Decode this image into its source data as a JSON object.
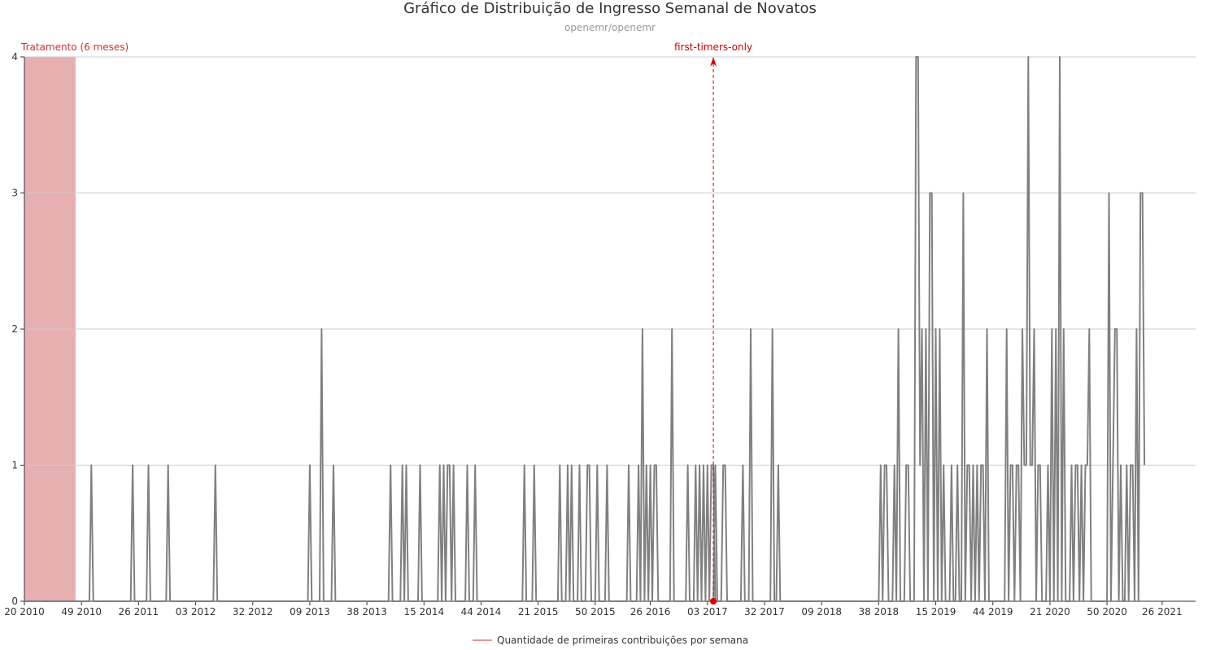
{
  "chart_data": {
    "type": "line",
    "title": "Gráfico de Distribuição de Ingresso Semanal de Novatos",
    "subtitle": "openemr/openemr",
    "ylim": [
      0,
      4
    ],
    "y_ticks": [
      "0",
      "1",
      "2",
      "3",
      "4"
    ],
    "x_tick_labels": [
      "20 2010",
      "49 2010",
      "26 2011",
      "03 2012",
      "32 2012",
      "09 2013",
      "38 2013",
      "15 2014",
      "44 2014",
      "21 2015",
      "50 2015",
      "26 2016",
      "03 2017",
      "32 2017",
      "09 2018",
      "38 2018",
      "15 2019",
      "44 2019",
      "21 2020",
      "50 2020",
      "26 2021"
    ],
    "x_range": [
      "20 2010",
      "43 2021"
    ],
    "grid": "horizontal",
    "legend_position": "bottom-center",
    "series": [
      {
        "name": "Quantidade de primeiras contribuições por semana",
        "color": "#808080",
        "points": [
          [
            "20 2010",
            0
          ],
          [
            "01 2011",
            0
          ],
          [
            "02 2011",
            1
          ],
          [
            "03 2011",
            0
          ],
          [
            "22 2011",
            0
          ],
          [
            "23 2011",
            1
          ],
          [
            "24 2011",
            0
          ],
          [
            "30 2011",
            0
          ],
          [
            "31 2011",
            1
          ],
          [
            "32 2011",
            0
          ],
          [
            "40 2011",
            0
          ],
          [
            "41 2011",
            1
          ],
          [
            "42 2011",
            0
          ],
          [
            "12 2012",
            0
          ],
          [
            "13 2012",
            1
          ],
          [
            "14 2012",
            0
          ],
          [
            "08 2013",
            0
          ],
          [
            "09 2013",
            1
          ],
          [
            "10 2013",
            0
          ],
          [
            "14 2013",
            0
          ],
          [
            "15 2013",
            2
          ],
          [
            "16 2013",
            0
          ],
          [
            "20 2013",
            0
          ],
          [
            "21 2013",
            1
          ],
          [
            "22 2013",
            0
          ],
          [
            "49 2013",
            0
          ],
          [
            "50 2013",
            1
          ],
          [
            "51 2013",
            0
          ],
          [
            "03 2014",
            0
          ],
          [
            "04 2014",
            1
          ],
          [
            "05 2014",
            0
          ],
          [
            "06 2014",
            1
          ],
          [
            "07 2014",
            0
          ],
          [
            "12 2014",
            0
          ],
          [
            "13 2014",
            1
          ],
          [
            "14 2014",
            0
          ],
          [
            "22 2014",
            0
          ],
          [
            "23 2014",
            1
          ],
          [
            "24 2014",
            0
          ],
          [
            "25 2014",
            1
          ],
          [
            "26 2014",
            0
          ],
          [
            "27 2014",
            1
          ],
          [
            "28 2014",
            1
          ],
          [
            "29 2014",
            0
          ],
          [
            "30 2014",
            1
          ],
          [
            "31 2014",
            0
          ],
          [
            "36 2014",
            0
          ],
          [
            "37 2014",
            1
          ],
          [
            "38 2014",
            0
          ],
          [
            "40 2014",
            0
          ],
          [
            "41 2014",
            1
          ],
          [
            "42 2014",
            0
          ],
          [
            "13 2015",
            0
          ],
          [
            "14 2015",
            1
          ],
          [
            "15 2015",
            0
          ],
          [
            "18 2015",
            0
          ],
          [
            "19 2015",
            1
          ],
          [
            "20 2015",
            0
          ],
          [
            "31 2015",
            0
          ],
          [
            "32 2015",
            1
          ],
          [
            "33 2015",
            0
          ],
          [
            "35 2015",
            0
          ],
          [
            "36 2015",
            1
          ],
          [
            "37 2015",
            0
          ],
          [
            "38 2015",
            1
          ],
          [
            "39 2015",
            0
          ],
          [
            "41 2015",
            0
          ],
          [
            "42 2015",
            1
          ],
          [
            "43 2015",
            0
          ],
          [
            "45 2015",
            0
          ],
          [
            "46 2015",
            1
          ],
          [
            "47 2015",
            1
          ],
          [
            "48 2015",
            0
          ],
          [
            "50 2015",
            0
          ],
          [
            "51 2015",
            1
          ],
          [
            "52 2015",
            0
          ],
          [
            "03 2016",
            0
          ],
          [
            "04 2016",
            1
          ],
          [
            "05 2016",
            0
          ],
          [
            "14 2016",
            0
          ],
          [
            "15 2016",
            1
          ],
          [
            "16 2016",
            0
          ],
          [
            "19 2016",
            0
          ],
          [
            "20 2016",
            1
          ],
          [
            "21 2016",
            0
          ],
          [
            "22 2016",
            2
          ],
          [
            "23 2016",
            0
          ],
          [
            "24 2016",
            1
          ],
          [
            "25 2016",
            0
          ],
          [
            "26 2016",
            1
          ],
          [
            "27 2016",
            0
          ],
          [
            "28 2016",
            1
          ],
          [
            "29 2016",
            1
          ],
          [
            "30 2016",
            0
          ],
          [
            "36 2016",
            0
          ],
          [
            "37 2016",
            2
          ],
          [
            "38 2016",
            0
          ],
          [
            "44 2016",
            0
          ],
          [
            "45 2016",
            1
          ],
          [
            "46 2016",
            0
          ],
          [
            "48 2016",
            0
          ],
          [
            "49 2016",
            1
          ],
          [
            "50 2016",
            0
          ],
          [
            "51 2016",
            1
          ],
          [
            "52 2016",
            0
          ],
          [
            "53 2016",
            1
          ],
          [
            "54 2016",
            0
          ],
          [
            "55 2016",
            1
          ],
          [
            "56 2016",
            0
          ],
          [
            "57 2016",
            1
          ],
          [
            "58 2016",
            1
          ],
          [
            "59 2016",
            0
          ],
          [
            "06 2017",
            0
          ],
          [
            "07 2017",
            1
          ],
          [
            "08 2017",
            0
          ],
          [
            "10 2017",
            0
          ],
          [
            "11 2017",
            1
          ],
          [
            "12 2017",
            1
          ],
          [
            "13 2017",
            0
          ],
          [
            "20 2017",
            0
          ],
          [
            "21 2017",
            1
          ],
          [
            "22 2017",
            0
          ],
          [
            "24 2017",
            0
          ],
          [
            "25 2017",
            2
          ],
          [
            "26 2017",
            0
          ],
          [
            "35 2017",
            0
          ],
          [
            "36 2017",
            2
          ],
          [
            "37 2017",
            0
          ],
          [
            "38 2017",
            0
          ],
          [
            "39 2017",
            1
          ],
          [
            "40 2017",
            0
          ],
          [
            "38 2018",
            0
          ],
          [
            "39 2018",
            1
          ],
          [
            "40 2018",
            0
          ],
          [
            "41 2018",
            1
          ],
          [
            "42 2018",
            1
          ],
          [
            "43 2018",
            0
          ],
          [
            "45 2018",
            0
          ],
          [
            "46 2018",
            1
          ],
          [
            "47 2018",
            0
          ],
          [
            "48 2018",
            2
          ],
          [
            "49 2018",
            0
          ],
          [
            "51 2018",
            0
          ],
          [
            "52 2018",
            1
          ],
          [
            "53 2018",
            1
          ],
          [
            "54 2018",
            0
          ],
          [
            "55 2018",
            0
          ],
          [
            "56 2018",
            0
          ],
          [
            "57 2018",
            4
          ],
          [
            "58 2018",
            4
          ],
          [
            "59 2018",
            1
          ],
          [
            "60 2018",
            2
          ],
          [
            "61 2018",
            0
          ],
          [
            "62 2018",
            2
          ],
          [
            "63 2018",
            0
          ],
          [
            "64 2018",
            3
          ],
          [
            "65 2018",
            3
          ],
          [
            "66 2018",
            0
          ],
          [
            "67 2018",
            2
          ],
          [
            "68 2018",
            0
          ],
          [
            "69 2018",
            2
          ],
          [
            "70 2018",
            0
          ],
          [
            "71 2018",
            1
          ],
          [
            "72 2018",
            0
          ],
          [
            "74 2018",
            0
          ],
          [
            "75 2018",
            1
          ],
          [
            "76 2018",
            0
          ],
          [
            "77 2018",
            0
          ],
          [
            "78 2018",
            1
          ],
          [
            "79 2018",
            0
          ],
          [
            "80 2018",
            0
          ],
          [
            "81 2018",
            3
          ],
          [
            "82 2018",
            0
          ],
          [
            "83 2018",
            1
          ],
          [
            "84 2018",
            1
          ],
          [
            "85 2018",
            0
          ],
          [
            "86 2018",
            1
          ],
          [
            "87 2018",
            0
          ],
          [
            "88 2018",
            1
          ],
          [
            "89 2018",
            0
          ],
          [
            "90 2018",
            1
          ],
          [
            "91 2018",
            1
          ],
          [
            "92 2018",
            0
          ],
          [
            "93 2018",
            2
          ],
          [
            "94 2018",
            0
          ],
          [
            "102 2018",
            0
          ],
          [
            "103 2018",
            2
          ],
          [
            "104 2018",
            0
          ],
          [
            "105 2018",
            1
          ],
          [
            "106 2018",
            1
          ],
          [
            "107 2018",
            0
          ],
          [
            "108 2018",
            1
          ],
          [
            "109 2018",
            1
          ],
          [
            "110 2018",
            0
          ],
          [
            "111 2018",
            2
          ],
          [
            "112 2018",
            1
          ],
          [
            "113 2018",
            1
          ],
          [
            "114 2018",
            4
          ],
          [
            "115 2018",
            1
          ],
          [
            "116 2018",
            1
          ],
          [
            "117 2018",
            2
          ],
          [
            "118 2018",
            0
          ],
          [
            "119 2018",
            1
          ],
          [
            "120 2018",
            1
          ],
          [
            "121 2018",
            0
          ],
          [
            "123 2018",
            0
          ],
          [
            "124 2018",
            1
          ],
          [
            "125 2018",
            0
          ],
          [
            "126 2018",
            2
          ],
          [
            "127 2018",
            0
          ],
          [
            "128 2018",
            2
          ],
          [
            "129 2018",
            0
          ],
          [
            "130 2018",
            4
          ],
          [
            "131 2018",
            0
          ],
          [
            "132 2018",
            2
          ],
          [
            "133 2018",
            0
          ],
          [
            "135 2018",
            0
          ],
          [
            "136 2018",
            1
          ],
          [
            "137 2018",
            0
          ],
          [
            "138 2018",
            1
          ],
          [
            "139 2018",
            1
          ],
          [
            "140 2018",
            0
          ],
          [
            "141 2018",
            1
          ],
          [
            "142 2018",
            0
          ],
          [
            "143 2018",
            1
          ],
          [
            "144 2018",
            1
          ],
          [
            "145 2018",
            2
          ],
          [
            "146 2018",
            0
          ],
          [
            "154 2018",
            0
          ],
          [
            "155 2018",
            3
          ],
          [
            "156 2018",
            0
          ],
          [
            "157 2018",
            1
          ],
          [
            "158 2018",
            2
          ],
          [
            "159 2018",
            2
          ],
          [
            "160 2018",
            0
          ],
          [
            "161 2018",
            1
          ],
          [
            "162 2018",
            0
          ],
          [
            "163 2018",
            0
          ],
          [
            "164 2018",
            1
          ],
          [
            "165 2018",
            0
          ],
          [
            "166 2018",
            1
          ],
          [
            "167 2018",
            1
          ],
          [
            "168 2018",
            0
          ],
          [
            "169 2018",
            2
          ],
          [
            "170 2018",
            0
          ],
          [
            "171 2018",
            3
          ],
          [
            "172 2018",
            3
          ],
          [
            "173 2018",
            1
          ]
        ]
      }
    ],
    "bands": [
      {
        "label": "Tratamento (6 meses)",
        "start": "20 2010",
        "end": "46 2010",
        "color": "#e6b0b0"
      }
    ],
    "markers": [
      {
        "label": "first-timers-only",
        "x": "06 2017",
        "color": "#dd0000"
      }
    ]
  }
}
